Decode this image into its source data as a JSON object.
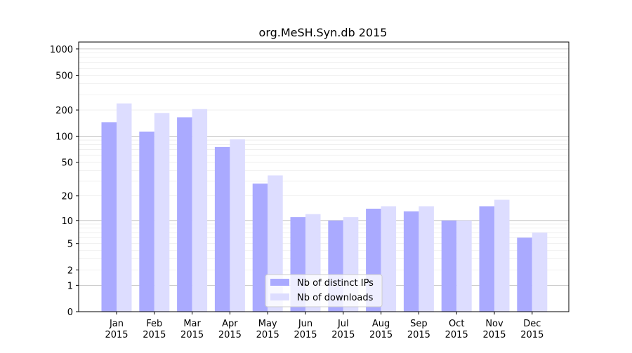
{
  "chart_data": {
    "type": "bar",
    "title": "org.MeSH.Syn.db 2015",
    "xlabel": "",
    "ylabel": "",
    "yscale": "log(1+y)",
    "ylim": [
      0,
      1200
    ],
    "yticks": [
      0,
      1,
      2,
      5,
      10,
      20,
      50,
      100,
      200,
      500,
      1000
    ],
    "grid": true,
    "legend_position": "bottom-center",
    "categories": [
      [
        "Jan",
        "2015"
      ],
      [
        "Feb",
        "2015"
      ],
      [
        "Mar",
        "2015"
      ],
      [
        "Apr",
        "2015"
      ],
      [
        "May",
        "2015"
      ],
      [
        "Jun",
        "2015"
      ],
      [
        "Jul",
        "2015"
      ],
      [
        "Aug",
        "2015"
      ],
      [
        "Sep",
        "2015"
      ],
      [
        "Oct",
        "2015"
      ],
      [
        "Nov",
        "2015"
      ],
      [
        "Dec",
        "2015"
      ]
    ],
    "series": [
      {
        "name": "Nb of distinct IPs",
        "color": "#aaaaff",
        "values": [
          145,
          113,
          165,
          75,
          28,
          11,
          10,
          14,
          13,
          10,
          15,
          6
        ]
      },
      {
        "name": "Nb of downloads",
        "color": "#ddddff",
        "values": [
          238,
          185,
          205,
          92,
          35,
          12,
          11,
          15,
          15,
          10,
          18,
          7
        ]
      }
    ]
  }
}
